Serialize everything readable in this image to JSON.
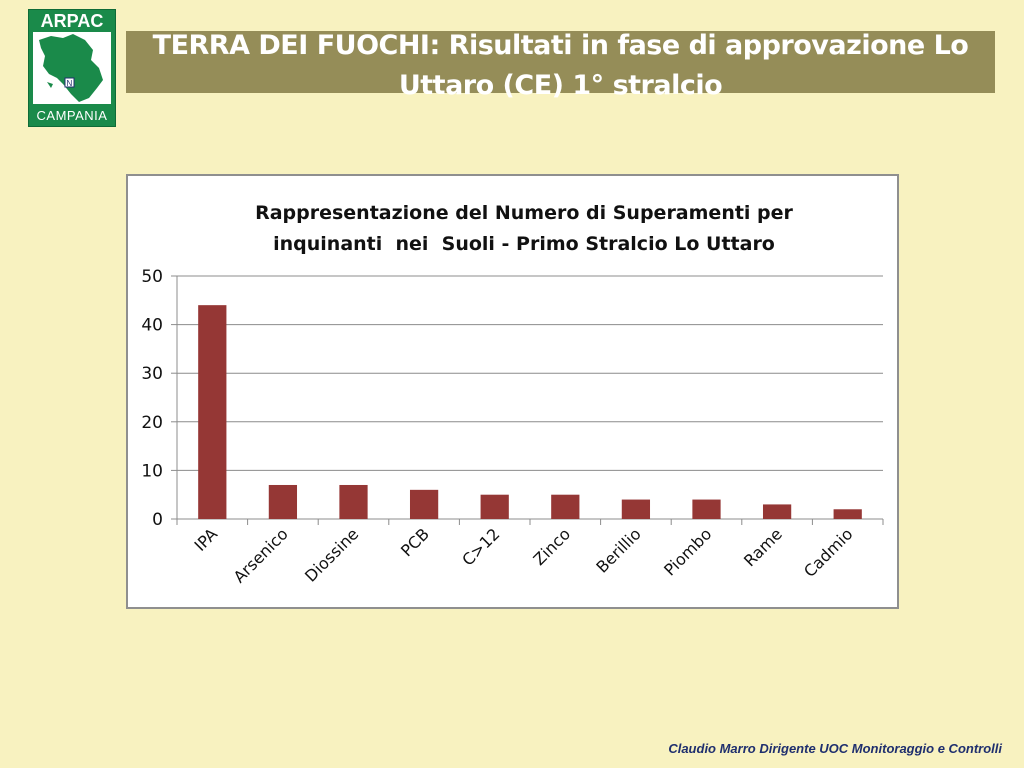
{
  "logo": {
    "top_text": "ARPAC",
    "bottom_text": "CAMPANIA",
    "fill": "#1a8a4a"
  },
  "header": {
    "title_line1": "TERRA DEI FUOCHI: Risultati in fase di approvazione Lo",
    "title_line2": "Uttaro (CE) 1° stralcio"
  },
  "footer": {
    "text": "Claudio Marro Dirigente UOC Monitoraggio e Controlli"
  },
  "colors": {
    "background": "#f8f2c0",
    "band": "#958d58",
    "bar": "#953735"
  },
  "chart_data": {
    "type": "bar",
    "title_line1": "Rappresentazione del Numero di Superamenti per",
    "title_line2": "inquinanti  nei  Suoli - Primo Stralcio Lo Uttaro",
    "categories": [
      "IPA",
      "Arsenico",
      "Diossine",
      "PCB",
      "C>12",
      "Zinco",
      "Berillio",
      "Piombo",
      "Rame",
      "Cadmio"
    ],
    "values": [
      44,
      7,
      7,
      6,
      5,
      5,
      4,
      4,
      3,
      2
    ],
    "ylim": [
      0,
      50
    ],
    "yticks": [
      0,
      10,
      20,
      30,
      40,
      50
    ],
    "grid": true,
    "legend": "none",
    "xlabel": "",
    "ylabel": ""
  }
}
